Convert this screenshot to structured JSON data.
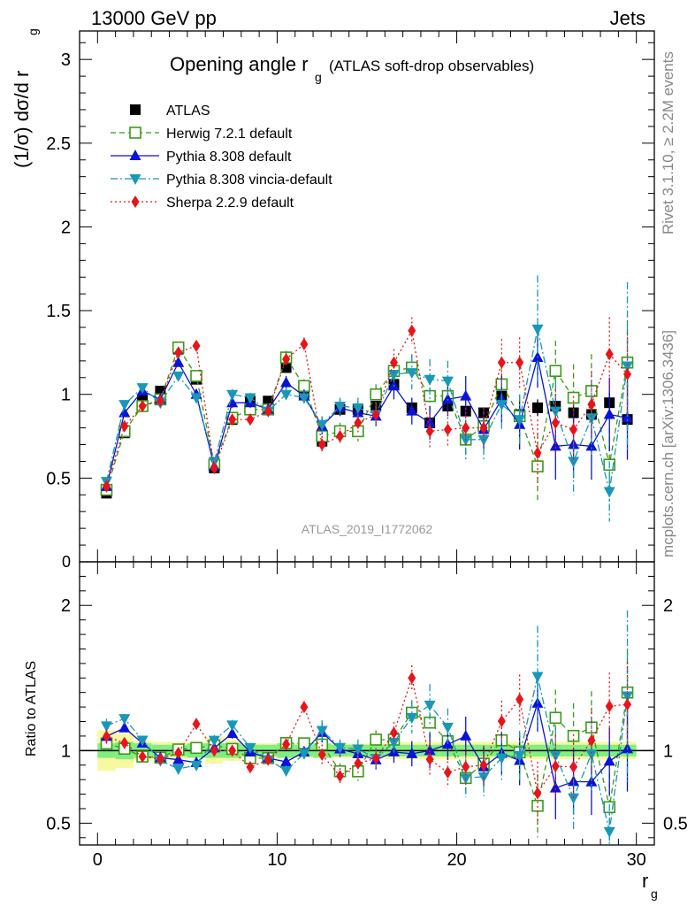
{
  "header": {
    "left": "13000 GeV pp",
    "right": "Jets"
  },
  "side_labels": {
    "rivet": "Rivet 3.1.10, ≥ 2.2M events",
    "mcplots": "mcplots.cern.ch [arXiv:1306.3436]"
  },
  "watermark": "ATLAS_2019_I1772062",
  "colors": {
    "atlas": "#000000",
    "herwig": "#3a9a18",
    "pythia": "#0b13d6",
    "vincia": "#1898b8",
    "sherpa": "#e8141a",
    "band_inner": "#80ee80",
    "band_outer": "#f8f8a0"
  },
  "chart_data": [
    {
      "type": "scatter",
      "title": "Opening angle r",
      "title_sub": "g",
      "title_suffix": "(ATLAS soft-drop observables)",
      "ylabel": "(1/σ) dσ/d r",
      "ylabel_sub": "g",
      "xlim": [
        -1,
        31
      ],
      "ylim": [
        0,
        3.17
      ],
      "y_ticks": [
        0.5,
        1,
        1.5,
        2,
        2.5,
        3
      ],
      "y_tick_labels": [
        "0.5",
        "1",
        "1.5",
        "2",
        "2.5",
        "3"
      ],
      "y_zero_label": "0",
      "x": [
        0.5,
        1.5,
        2.5,
        3.5,
        4.5,
        5.5,
        6.5,
        7.5,
        8.5,
        9.5,
        10.5,
        11.5,
        12.5,
        13.5,
        14.5,
        15.5,
        16.5,
        17.5,
        18.5,
        19.5,
        20.5,
        21.5,
        22.5,
        23.5,
        24.5,
        25.5,
        26.5,
        27.5,
        28.5,
        29.5
      ],
      "series": [
        {
          "name": "ATLAS",
          "key": "atlas",
          "marker": "square",
          "line": "none",
          "values": [
            0.41,
            0.77,
            0.97,
            1.02,
            1.27,
            1.09,
            0.56,
            0.85,
            0.96,
            0.96,
            1.16,
            1.0,
            0.72,
            0.91,
            0.91,
            0.93,
            1.06,
            0.92,
            0.83,
            0.93,
            0.9,
            0.89,
            0.99,
            0.88,
            0.92,
            0.93,
            0.89,
            0.88,
            0.95,
            0.85
          ],
          "errors": [
            0.02,
            0.02,
            0.02,
            0.02,
            0.03,
            0.02,
            0.02,
            0.02,
            0.02,
            0.02,
            0.03,
            0.02,
            0.02,
            0.02,
            0.02,
            0.02,
            0.03,
            0.03,
            0.03,
            0.03,
            0.03,
            0.03,
            0.04,
            0.04,
            0.05,
            0.05,
            0.05,
            0.05,
            0.06,
            0.06
          ]
        },
        {
          "name": "Herwig 7.2.1 default",
          "key": "herwig",
          "marker": "open-square",
          "line": "dashed",
          "values": [
            0.43,
            0.78,
            0.93,
            0.97,
            1.28,
            1.11,
            0.58,
            0.86,
            0.91,
            0.91,
            1.22,
            1.05,
            0.75,
            0.78,
            0.78,
            1.0,
            1.14,
            1.16,
            0.99,
            0.99,
            0.73,
            0.81,
            1.06,
            0.87,
            0.57,
            1.14,
            0.98,
            1.02,
            0.58,
            1.19
          ],
          "errors": [
            0.02,
            0.02,
            0.02,
            0.02,
            0.02,
            0.02,
            0.02,
            0.03,
            0.03,
            0.03,
            0.04,
            0.04,
            0.05,
            0.05,
            0.06,
            0.06,
            0.08,
            0.08,
            0.1,
            0.1,
            0.1,
            0.1,
            0.12,
            0.12,
            0.2,
            0.18,
            0.2,
            0.22,
            0.22,
            0.25
          ]
        },
        {
          "name": "Pythia 8.308 default",
          "key": "pythia",
          "marker": "triangle-up",
          "line": "solid",
          "values": [
            0.45,
            0.89,
            1.02,
            0.97,
            1.19,
            1.0,
            0.57,
            0.95,
            0.95,
            0.91,
            1.07,
            0.99,
            0.81,
            0.92,
            0.89,
            0.87,
            1.05,
            0.9,
            0.83,
            0.97,
            0.99,
            0.79,
            0.97,
            0.82,
            1.22,
            0.69,
            0.7,
            0.69,
            0.88,
            0.86
          ],
          "errors": [
            0.02,
            0.02,
            0.02,
            0.02,
            0.02,
            0.02,
            0.02,
            0.03,
            0.03,
            0.03,
            0.04,
            0.04,
            0.05,
            0.05,
            0.06,
            0.06,
            0.08,
            0.08,
            0.1,
            0.1,
            0.12,
            0.12,
            0.14,
            0.15,
            0.18,
            0.2,
            0.2,
            0.2,
            0.22,
            0.25
          ]
        },
        {
          "name": "Pythia 8.308 vincia-default",
          "key": "vincia",
          "marker": "triangle-down",
          "line": "dashdot",
          "values": [
            0.48,
            0.94,
            1.04,
            0.95,
            1.11,
            0.98,
            0.6,
            1.0,
            0.98,
            0.9,
            1.0,
            0.98,
            0.82,
            0.93,
            0.92,
            0.88,
            1.12,
            1.13,
            1.09,
            1.08,
            0.73,
            0.73,
            0.94,
            0.85,
            1.39,
            0.9,
            0.6,
            0.86,
            0.42,
            1.17
          ],
          "errors": [
            0.02,
            0.02,
            0.02,
            0.02,
            0.02,
            0.02,
            0.02,
            0.03,
            0.03,
            0.03,
            0.04,
            0.04,
            0.05,
            0.05,
            0.06,
            0.06,
            0.08,
            0.1,
            0.12,
            0.12,
            0.12,
            0.12,
            0.15,
            0.15,
            0.32,
            0.18,
            0.2,
            0.22,
            0.18,
            0.5
          ]
        },
        {
          "name": "Sherpa 2.2.9 default",
          "key": "sherpa",
          "marker": "diamond",
          "line": "dotted",
          "values": [
            0.45,
            0.81,
            0.93,
            0.96,
            1.25,
            1.29,
            0.56,
            0.85,
            0.85,
            0.9,
            1.21,
            1.3,
            0.7,
            0.75,
            0.83,
            0.88,
            1.19,
            1.38,
            0.78,
            0.79,
            0.8,
            0.8,
            1.19,
            1.19,
            0.65,
            0.83,
            0.79,
            0.94,
            1.24,
            1.12
          ],
          "errors": [
            0.02,
            0.02,
            0.02,
            0.02,
            0.02,
            0.02,
            0.02,
            0.03,
            0.03,
            0.03,
            0.04,
            0.04,
            0.05,
            0.05,
            0.06,
            0.06,
            0.08,
            0.08,
            0.1,
            0.1,
            0.12,
            0.12,
            0.14,
            0.15,
            0.2,
            0.2,
            0.2,
            0.2,
            0.22,
            0.25
          ]
        }
      ]
    },
    {
      "type": "scatter",
      "ylabel": "Ratio to ATLAS",
      "xlabel": "r",
      "xlabel_sub": "g",
      "xlim": [
        -1,
        31
      ],
      "ylim": [
        0.35,
        2.3
      ],
      "x_ticks": [
        0,
        10,
        20,
        30
      ],
      "x_tick_labels": [
        "0",
        "10",
        "20",
        "30"
      ],
      "y_ticks": [
        0.5,
        1,
        2
      ],
      "y_tick_labels": [
        "0.5",
        "1",
        "2"
      ],
      "band_inner": [
        0.05,
        0.06,
        0.05,
        0.04,
        0.04,
        0.05,
        0.05,
        0.05,
        0.04,
        0.04,
        0.05,
        0.04,
        0.05,
        0.04,
        0.04,
        0.04,
        0.04,
        0.04,
        0.04,
        0.04,
        0.04,
        0.04,
        0.04,
        0.04,
        0.04,
        0.04,
        0.04,
        0.04,
        0.04,
        0.04
      ],
      "band_outer": [
        0.14,
        0.12,
        0.07,
        0.06,
        0.06,
        0.05,
        0.09,
        0.07,
        0.05,
        0.05,
        0.05,
        0.05,
        0.05,
        0.05,
        0.05,
        0.05,
        0.06,
        0.06,
        0.06,
        0.06,
        0.06,
        0.06,
        0.06,
        0.06,
        0.06,
        0.06,
        0.06,
        0.06,
        0.06,
        0.06
      ],
      "note": "ratio values computed as model / ATLAS"
    }
  ]
}
